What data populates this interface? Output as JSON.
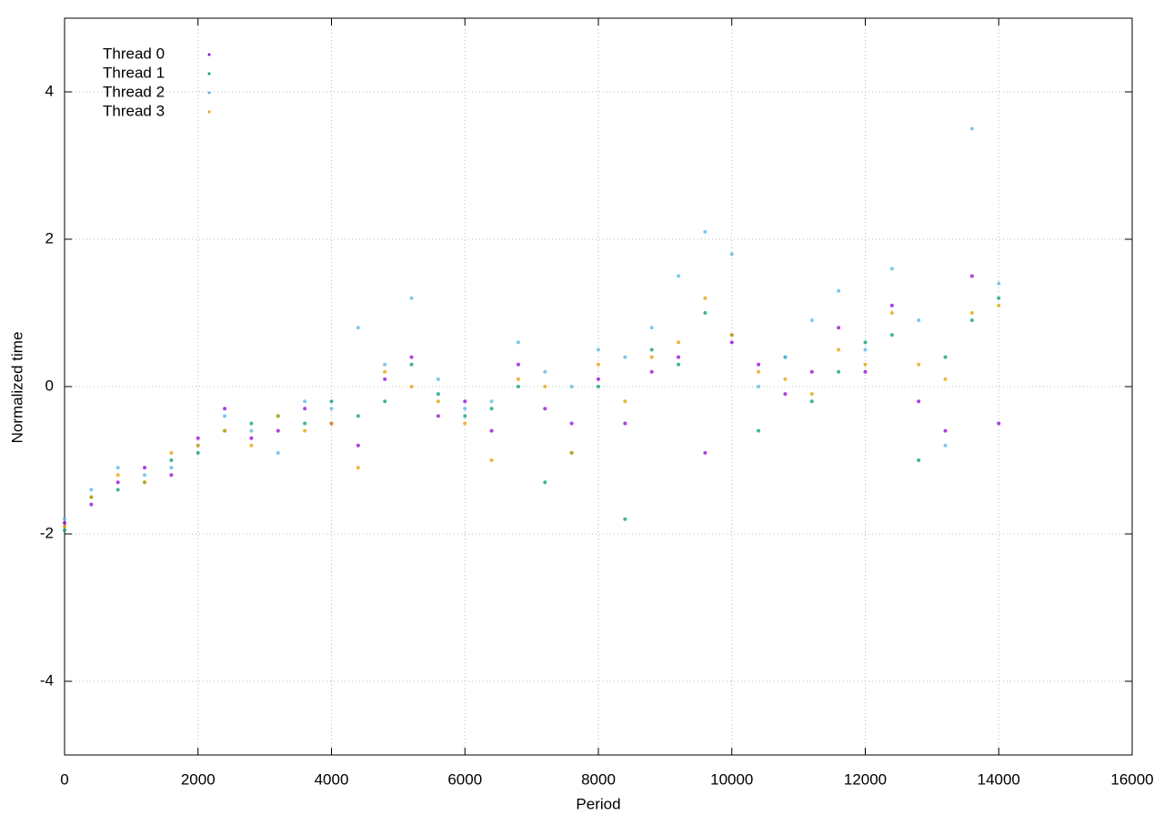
{
  "chart_data": {
    "type": "scatter",
    "xlabel": "Period",
    "ylabel": "Normalized time",
    "x": [
      0,
      400,
      800,
      1200,
      1600,
      2000,
      2400,
      2800,
      3200,
      3600,
      4000,
      4400,
      4800,
      5200,
      5600,
      6000,
      6400,
      6800,
      7200,
      7600,
      8000,
      8400,
      8800,
      9200,
      9600,
      10000,
      10400,
      10800,
      11200,
      11600,
      12000,
      12400,
      12800,
      13200,
      13600,
      14000
    ],
    "series": [
      {
        "name": "Thread 0",
        "color": "#9400d3",
        "values": [
          -1.85,
          -1.6,
          -1.3,
          -1.1,
          -1.2,
          -0.7,
          -0.3,
          -0.7,
          -0.6,
          -0.3,
          -0.5,
          -0.8,
          0.1,
          0.4,
          -0.4,
          -0.2,
          -0.6,
          0.3,
          -0.3,
          -0.5,
          0.1,
          -0.5,
          0.2,
          0.4,
          -0.9,
          0.6,
          0.3,
          -0.1,
          0.2,
          0.8,
          0.2,
          1.1,
          -0.2,
          -0.6,
          1.5,
          -0.5
        ]
      },
      {
        "name": "Thread 1",
        "color": "#009e73",
        "values": [
          -1.95,
          -1.5,
          -1.4,
          -1.3,
          -1.0,
          -0.9,
          -0.6,
          -0.5,
          -0.4,
          -0.5,
          -0.2,
          -0.4,
          -0.2,
          0.3,
          -0.1,
          -0.4,
          -0.3,
          0.0,
          -1.3,
          -0.9,
          0.0,
          -1.8,
          0.5,
          0.3,
          1.0,
          0.7,
          -0.6,
          0.4,
          -0.2,
          0.2,
          0.6,
          0.7,
          -1.0,
          0.4,
          0.9,
          1.2
        ]
      },
      {
        "name": "Thread 2",
        "color": "#56b4e9",
        "values": [
          -1.8,
          -1.4,
          -1.1,
          -1.2,
          -1.1,
          -0.8,
          -0.4,
          -0.6,
          -0.9,
          -0.2,
          -0.3,
          0.8,
          0.3,
          1.2,
          0.1,
          -0.3,
          -0.2,
          0.6,
          0.2,
          0.0,
          0.5,
          0.4,
          0.8,
          1.5,
          2.1,
          1.8,
          0.0,
          0.4,
          0.9,
          1.3,
          0.5,
          1.6,
          0.9,
          -0.8,
          3.5,
          1.4
        ]
      },
      {
        "name": "Thread 3",
        "color": "#e69f00",
        "values": [
          -1.9,
          -1.5,
          -1.2,
          -1.3,
          -0.9,
          -0.8,
          -0.6,
          -0.8,
          -0.4,
          -0.6,
          -0.5,
          -1.1,
          0.2,
          0.0,
          -0.2,
          -0.5,
          -1.0,
          0.1,
          0.0,
          -0.9,
          0.3,
          -0.2,
          0.4,
          0.6,
          1.2,
          0.7,
          0.2,
          0.1,
          -0.1,
          0.5,
          0.3,
          1.0,
          0.3,
          0.1,
          1.0,
          1.1
        ]
      }
    ],
    "xlim": [
      0,
      16000
    ],
    "xticks": [
      0,
      2000,
      4000,
      6000,
      8000,
      10000,
      12000,
      14000,
      16000
    ],
    "ylim": [
      -5,
      5
    ],
    "yticks": [
      -4,
      -2,
      0,
      2,
      4
    ],
    "grid": true,
    "legend": "top-left"
  }
}
